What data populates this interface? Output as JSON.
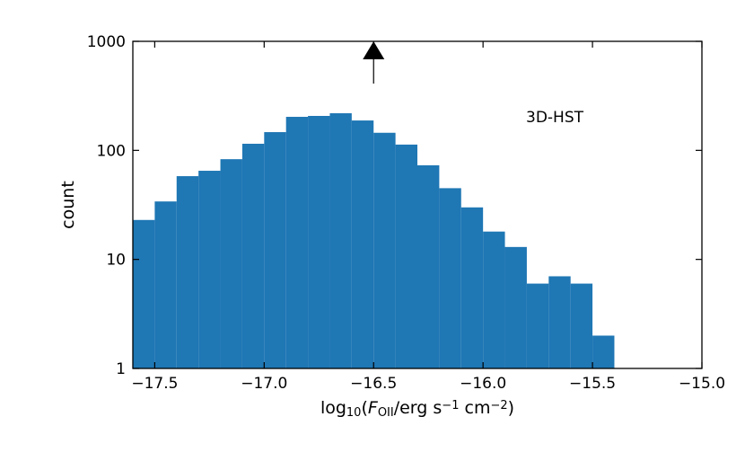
{
  "chart_data": {
    "type": "histogram",
    "xlabel": [
      "log",
      "10",
      "(",
      "F",
      "OII",
      "/erg s",
      "−1",
      " cm",
      "−2",
      ")"
    ],
    "ylabel": "count",
    "annotation": "3D-HST",
    "marker_x": -16.5,
    "bins": [
      -17.6,
      -17.5,
      -17.4,
      -17.3,
      -17.2,
      -17.1,
      -17.0,
      -16.9,
      -16.8,
      -16.7,
      -16.6,
      -16.5,
      -16.4,
      -16.3,
      -16.2,
      -16.1,
      -16.0,
      -15.9,
      -15.8,
      -15.7,
      -15.6,
      -15.5,
      -15.4
    ],
    "values": [
      23,
      34,
      58,
      65,
      83,
      115,
      147,
      203,
      207,
      219,
      188,
      145,
      113,
      73,
      45,
      30,
      18,
      13,
      6,
      7,
      6,
      2
    ],
    "color": "#1f77b4",
    "xlim": [
      -17.6,
      -15.0
    ],
    "xticks": [
      {
        "value": -17.5,
        "label": "−17.5"
      },
      {
        "value": -17.0,
        "label": "−17.0"
      },
      {
        "value": -16.5,
        "label": "−16.5"
      },
      {
        "value": -16.0,
        "label": "−16.0"
      },
      {
        "value": -15.5,
        "label": "−15.5"
      },
      {
        "value": -15.0,
        "label": "−15.0"
      }
    ],
    "ylim": [
      1,
      1000
    ],
    "yticks": [
      1,
      10,
      100,
      1000
    ],
    "ylog": true
  }
}
